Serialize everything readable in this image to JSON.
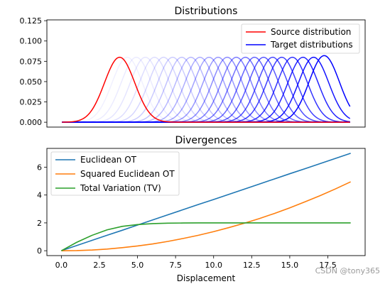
{
  "chart_data": [
    {
      "type": "line",
      "title": "Distributions",
      "xlabel": "",
      "ylabel": "",
      "xlim": [
        -1.0,
        20.0
      ],
      "ylim": [
        -0.006,
        0.126
      ],
      "yticks": [
        "0.000",
        "0.025",
        "0.050",
        "0.075",
        "0.100",
        "0.125"
      ],
      "ytick_values": [
        0.0,
        0.025,
        0.05,
        0.075,
        0.1,
        0.125
      ],
      "x_range": [
        0,
        19
      ],
      "sigma": 1.0,
      "source": {
        "name": "Source distribution",
        "color": "#ff0000",
        "center": 3.8,
        "peak": 0.08
      },
      "targets": {
        "name": "Target distributions",
        "color": "#0000ff",
        "centers": [
          4.3,
          4.9,
          5.5,
          6.1,
          6.7,
          7.3,
          7.9,
          8.5,
          9.1,
          9.7,
          10.3,
          10.9,
          11.5,
          12.1,
          12.7,
          13.3,
          13.9,
          14.5,
          15.2,
          15.9,
          16.6,
          17.3
        ],
        "peaks": [
          0.08,
          0.08,
          0.08,
          0.08,
          0.08,
          0.08,
          0.08,
          0.08,
          0.08,
          0.08,
          0.08,
          0.08,
          0.08,
          0.08,
          0.08,
          0.08,
          0.08,
          0.08,
          0.08,
          0.08,
          0.08,
          0.082
        ],
        "opacities": [
          0.06,
          0.08,
          0.1,
          0.13,
          0.16,
          0.2,
          0.24,
          0.28,
          0.32,
          0.36,
          0.4,
          0.45,
          0.5,
          0.55,
          0.6,
          0.65,
          0.7,
          0.75,
          0.8,
          0.86,
          0.92,
          1.0
        ]
      },
      "legend": {
        "position": "top-right",
        "entries": [
          "Source distribution",
          "Target distributions"
        ]
      }
    },
    {
      "type": "line",
      "title": "Divergences",
      "xlabel": "Displacement",
      "ylabel": "",
      "xlim": [
        -0.95,
        19.95
      ],
      "ylim": [
        -0.35,
        7.35
      ],
      "xticks": [
        "0.0",
        "2.5",
        "5.0",
        "7.5",
        "10.0",
        "12.5",
        "15.0",
        "17.5"
      ],
      "xtick_values": [
        0.0,
        2.5,
        5.0,
        7.5,
        10.0,
        12.5,
        15.0,
        17.5
      ],
      "yticks": [
        "0",
        "2",
        "4",
        "6"
      ],
      "ytick_values": [
        0,
        2,
        4,
        6
      ],
      "x": [
        0,
        1,
        2,
        3,
        4,
        5,
        6,
        7,
        8,
        9,
        10,
        11,
        12,
        13,
        14,
        15,
        16,
        17,
        18,
        19
      ],
      "series": [
        {
          "name": "Euclidean OT",
          "color": "#1f77b4",
          "values": [
            0.0,
            0.37,
            0.74,
            1.11,
            1.47,
            1.84,
            2.21,
            2.58,
            2.95,
            3.32,
            3.68,
            4.05,
            4.42,
            4.79,
            5.16,
            5.53,
            5.89,
            6.26,
            6.63,
            7.0
          ]
        },
        {
          "name": "Squared Euclidean OT",
          "color": "#ff7f0e",
          "values": [
            0.0,
            0.01,
            0.05,
            0.12,
            0.22,
            0.34,
            0.49,
            0.67,
            0.88,
            1.11,
            1.37,
            1.66,
            1.97,
            2.31,
            2.68,
            3.08,
            3.51,
            3.96,
            4.44,
            4.95
          ]
        },
        {
          "name": "Total Variation (TV)",
          "color": "#2ca02c",
          "values": [
            0.0,
            0.6,
            1.1,
            1.5,
            1.75,
            1.88,
            1.95,
            1.98,
            1.99,
            2.0,
            2.0,
            2.0,
            2.0,
            2.0,
            2.0,
            2.0,
            2.0,
            2.0,
            2.0,
            2.0
          ]
        }
      ],
      "legend": {
        "position": "top-left",
        "entries": [
          "Euclidean OT",
          "Squared Euclidean OT",
          "Total Variation (TV)"
        ]
      }
    }
  ],
  "watermark": "CSDN @tony365"
}
